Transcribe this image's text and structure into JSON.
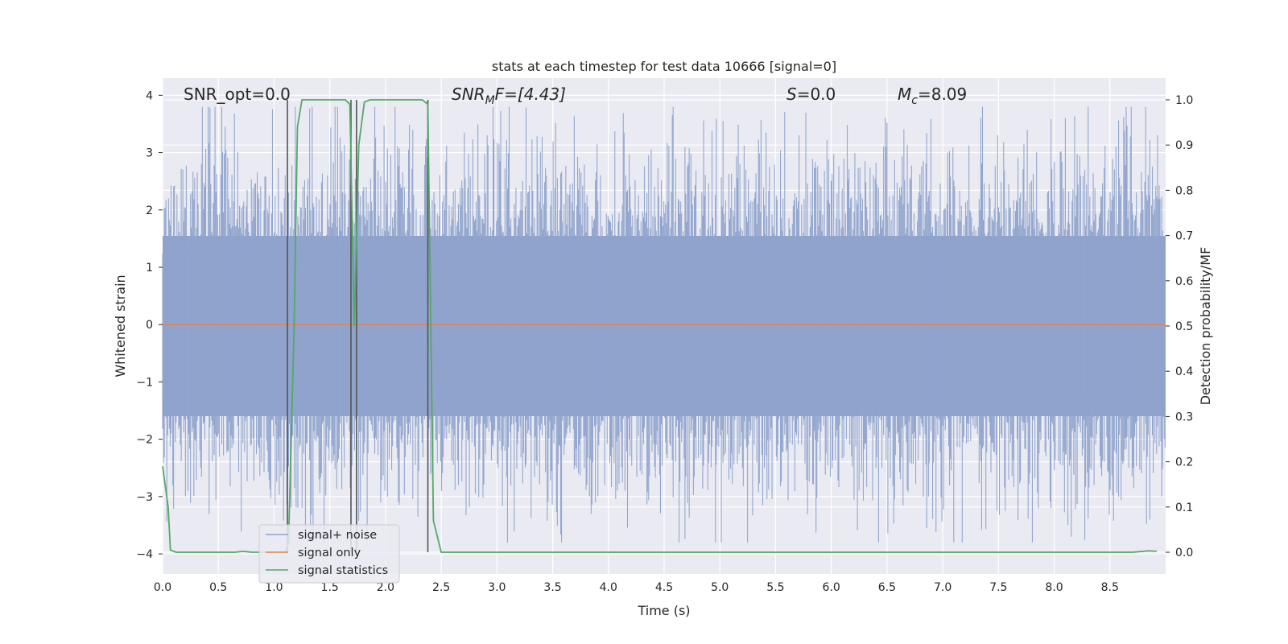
{
  "chart_data": {
    "type": "line",
    "title": "stats at each timestep for test data 10666 [signal=0]",
    "xlabel": "Time (s)",
    "ylabel": "Whitened strain",
    "y2label": "Detection probability/MF",
    "xlim": [
      0.0,
      9.0
    ],
    "ylim": [
      -4.35,
      4.3
    ],
    "y2lim": [
      -0.048,
      1.048
    ],
    "xticks": [
      "0.0",
      "0.5",
      "1.0",
      "1.5",
      "2.0",
      "2.5",
      "3.0",
      "3.5",
      "4.0",
      "4.5",
      "5.0",
      "5.5",
      "6.0",
      "6.5",
      "7.0",
      "7.5",
      "8.0",
      "8.5"
    ],
    "yticks": [
      "4",
      "3",
      "2",
      "1",
      "0",
      "−1",
      "−2",
      "−3",
      "−4"
    ],
    "y2ticks": [
      "1.0",
      "0.9",
      "0.8",
      "0.7",
      "0.6",
      "0.5",
      "0.4",
      "0.3",
      "0.2",
      "0.1",
      "0.0"
    ],
    "annotations": {
      "snr_opt": "SNR_opt=0.0",
      "snr_mf_main": "SNR",
      "snr_mf_sub": "M",
      "snr_mf_rest": "F=[4.43]",
      "s_main": "S",
      "s_rest": "=0.0",
      "mc_main": "M",
      "mc_sub": "c",
      "mc_rest": "=8.09"
    },
    "series": [
      {
        "name": "signal+ noise",
        "color": "#8fa3cc",
        "note": "dense whitened noise trace, amplitude roughly within ±3.5"
      },
      {
        "name": "signal only",
        "color": "#dd8452",
        "y": 0
      },
      {
        "name": "signal statistics",
        "color": "#55a868",
        "axis": "right",
        "points": [
          [
            0.0,
            0.19
          ],
          [
            0.05,
            0.1
          ],
          [
            0.07,
            0.005
          ],
          [
            0.12,
            0.0
          ],
          [
            0.5,
            0.0
          ],
          [
            0.65,
            0.0
          ],
          [
            0.72,
            0.002
          ],
          [
            0.8,
            0.0
          ],
          [
            1.0,
            0.0
          ],
          [
            1.1,
            0.0
          ],
          [
            1.13,
            0.02
          ],
          [
            1.18,
            0.5
          ],
          [
            1.21,
            0.94
          ],
          [
            1.25,
            1.0
          ],
          [
            1.64,
            1.0
          ],
          [
            1.68,
            0.99
          ],
          [
            1.72,
            0.5
          ],
          [
            1.76,
            0.9
          ],
          [
            1.81,
            0.995
          ],
          [
            1.86,
            1.0
          ],
          [
            2.33,
            1.0
          ],
          [
            2.38,
            0.99
          ],
          [
            2.43,
            0.07
          ],
          [
            2.5,
            0.0
          ],
          [
            2.7,
            0.0
          ],
          [
            8.7,
            0.0
          ],
          [
            8.85,
            0.003
          ],
          [
            8.92,
            0.002
          ]
        ]
      }
    ],
    "vlines": [
      1.12,
      1.69,
      1.74,
      2.38
    ],
    "legend": {
      "location": "lower-left",
      "entries": [
        "signal+ noise",
        "signal only",
        "signal statistics"
      ]
    }
  }
}
